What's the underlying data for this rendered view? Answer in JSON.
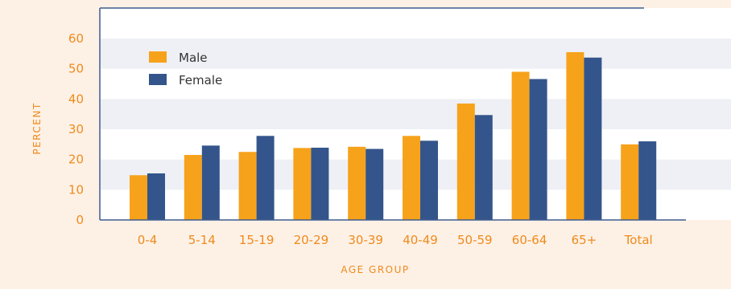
{
  "chart_data": {
    "type": "bar",
    "title": "",
    "xlabel": "AGE GROUP",
    "ylabel": "PERCENT",
    "categories": [
      "0-4",
      "5-14",
      "15-19",
      "20-29",
      "30-39",
      "40-49",
      "50-59",
      "60-64",
      "65+",
      "Total"
    ],
    "series": [
      {
        "name": "Male",
        "color": "#f7a21b",
        "values": [
          14.8,
          21.5,
          22.5,
          23.8,
          24.2,
          27.8,
          38.5,
          49.0,
          55.5,
          25.0
        ]
      },
      {
        "name": "Female",
        "color": "#34558b",
        "values": [
          15.4,
          24.6,
          27.8,
          23.9,
          23.5,
          26.2,
          34.7,
          46.6,
          53.7,
          26.0
        ]
      }
    ],
    "ylim": [
      0,
      60
    ],
    "yticks": [
      0,
      10,
      20,
      30,
      40,
      50,
      60
    ],
    "grid": "alternating horizontal bands",
    "legend_position": "top-left"
  }
}
